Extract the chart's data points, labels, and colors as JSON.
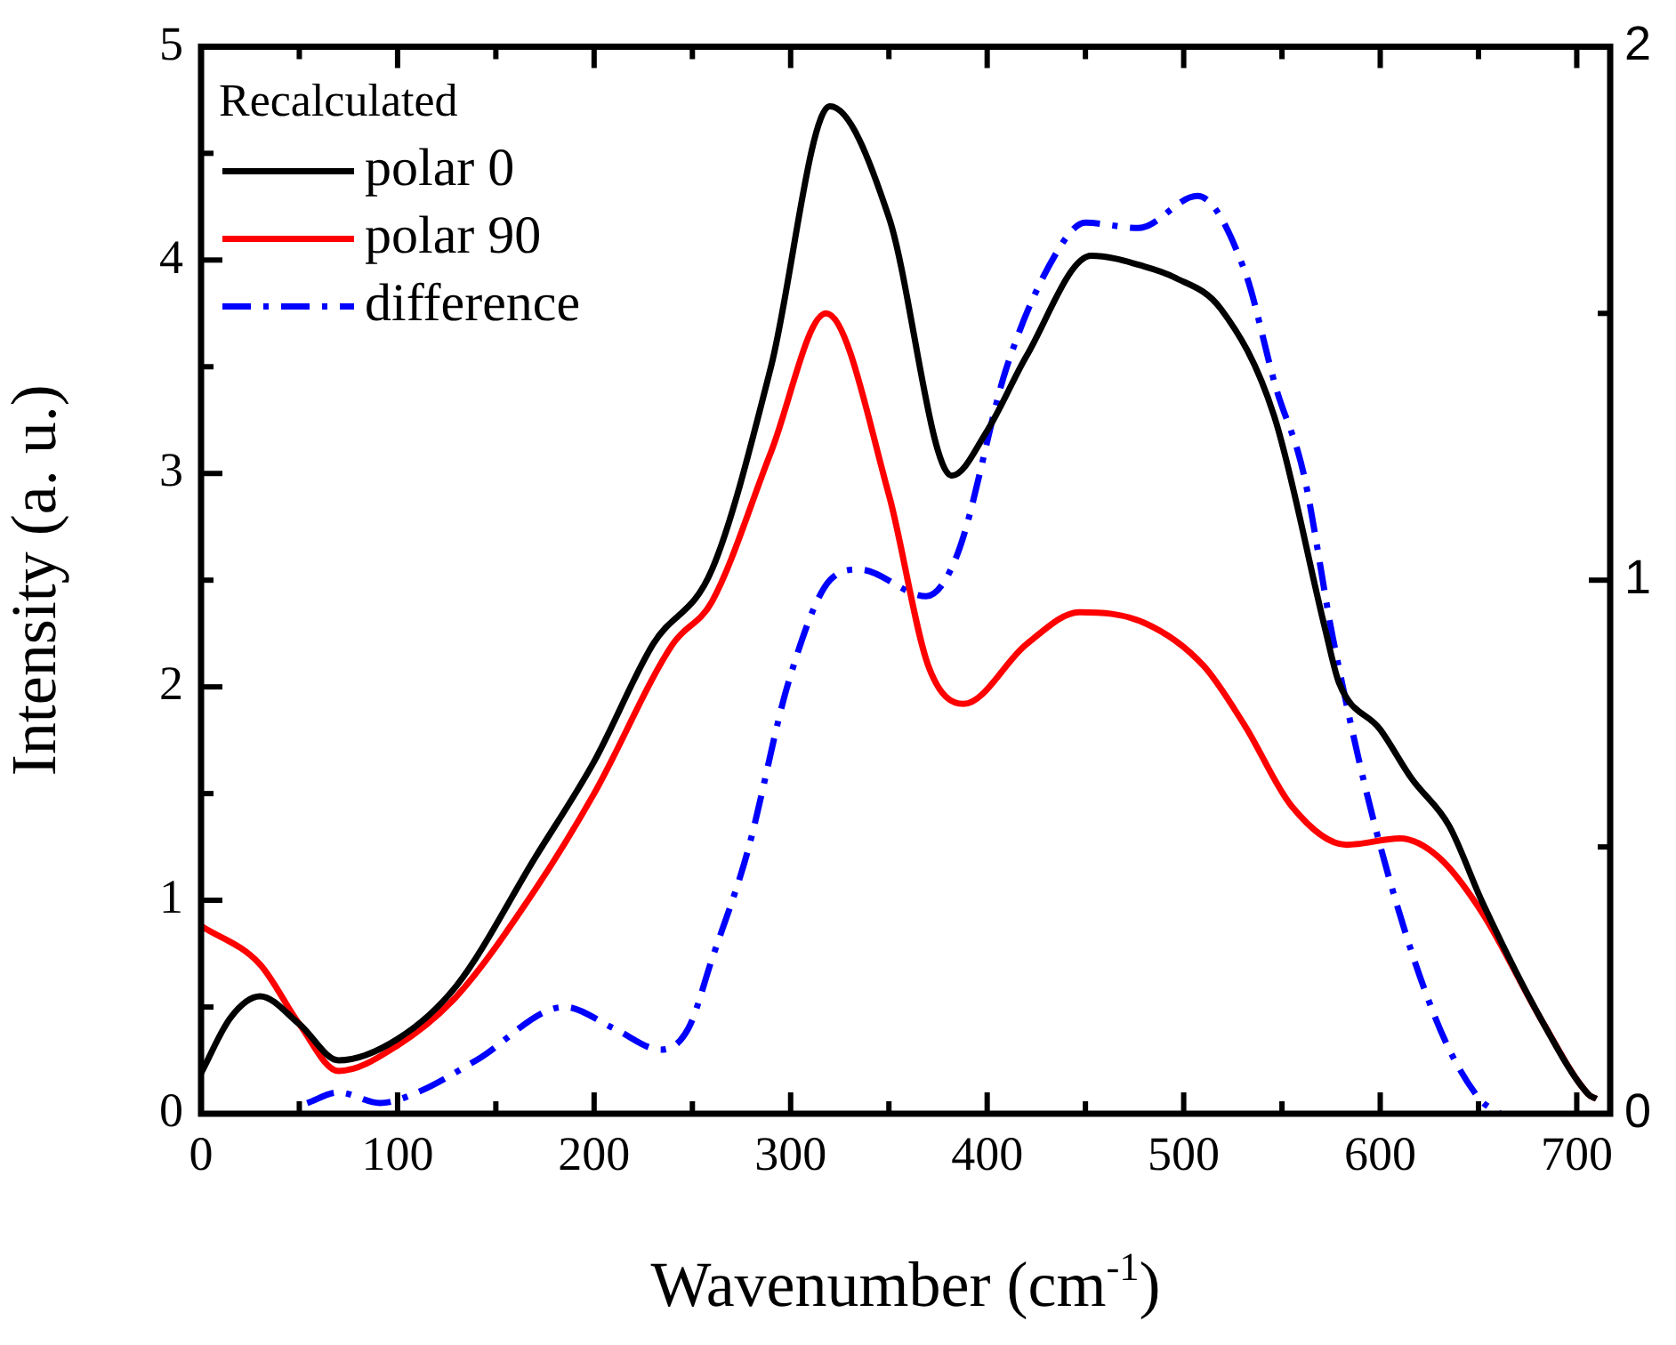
{
  "chart_data": {
    "type": "line",
    "xlabel": "Wavenumber (cm$^{-1}$)",
    "ylabel": "Intensity (a. u.)",
    "legend_title": "Recalculated",
    "xlim": [
      0,
      717
    ],
    "ylim": [
      0,
      5
    ],
    "y2lim": [
      0,
      2
    ],
    "xticks": [
      0,
      {
        "value": 50,
        "label": null
      },
      100,
      {
        "value": 150,
        "label": null
      },
      200,
      {
        "value": 250,
        "label": null
      },
      300,
      {
        "value": 350,
        "label": null
      },
      400,
      {
        "value": 450,
        "label": null
      },
      500,
      {
        "value": 550,
        "label": null
      },
      600,
      {
        "value": 650,
        "label": null
      },
      700
    ],
    "yticks": [
      0,
      {
        "value": 0.5,
        "label": null
      },
      1,
      {
        "value": 1.5,
        "label": null
      },
      2,
      {
        "value": 2.5,
        "label": null
      },
      3,
      {
        "value": 3.5,
        "label": null
      },
      4,
      {
        "value": 4.5,
        "label": null
      },
      5
    ],
    "y2ticks": [
      0,
      {
        "value": 0.5,
        "label": null
      },
      1,
      {
        "value": 1.5,
        "label": null
      },
      2
    ],
    "grid": false,
    "legend": "top left",
    "line_style": "solid",
    "marker": "none",
    "series": [
      {
        "name": "polar 0",
        "color": "#000000",
        "x": [
          0,
          15,
          30,
          50,
          70,
          100,
          130,
          170,
          200,
          230,
          260,
          290,
          320,
          350,
          382,
          400,
          420,
          453,
          480,
          495,
          519,
          546,
          572,
          579,
          600,
          616,
          635,
          652,
          682,
          706,
          710
        ],
        "values": [
          0.19,
          0.45,
          0.55,
          0.42,
          0.25,
          0.35,
          0.6,
          1.2,
          1.65,
          2.2,
          2.55,
          3.5,
          4.72,
          4.2,
          2.99,
          3.2,
          3.55,
          4.02,
          3.97,
          3.92,
          3.77,
          3.27,
          2.27,
          2.02,
          1.8,
          1.57,
          1.35,
          0.99,
          0.44,
          0.09,
          0.07
        ]
      },
      {
        "name": "polar 90",
        "color": "#ff0000",
        "x": [
          0,
          30,
          50,
          70,
          100,
          130,
          170,
          200,
          240,
          260,
          290,
          318,
          350,
          370,
          388,
          420,
          447,
          480,
          510,
          531,
          555,
          583,
          610,
          630,
          652,
          682,
          706,
          710
        ],
        "values": [
          0.88,
          0.7,
          0.42,
          0.2,
          0.32,
          0.55,
          1.05,
          1.5,
          2.2,
          2.4,
          3.1,
          3.75,
          2.9,
          2.1,
          1.92,
          2.2,
          2.35,
          2.3,
          2.1,
          1.82,
          1.44,
          1.26,
          1.29,
          1.2,
          0.94,
          0.44,
          0.09,
          0.07
        ]
      },
      {
        "name": "difference",
        "color": "#0000ff",
        "axis": "y2",
        "line_style": "dashdot",
        "x": [
          54,
          70,
          91,
          110,
          140,
          185,
          210,
          234,
          248,
          260,
          278,
          299,
          320,
          335,
          369,
          385,
          410,
          438,
          450,
          477,
          507,
          531,
          547,
          561,
          576,
          598,
          628,
          650,
          661
        ],
        "values": [
          0.02,
          0.04,
          0.02,
          0.04,
          0.1,
          0.2,
          0.16,
          0.12,
          0.16,
          0.29,
          0.49,
          0.81,
          1.0,
          1.02,
          0.97,
          1.05,
          1.4,
          1.63,
          1.67,
          1.66,
          1.72,
          1.58,
          1.36,
          1.2,
          0.89,
          0.53,
          0.18,
          0.03,
          0
        ]
      }
    ]
  }
}
